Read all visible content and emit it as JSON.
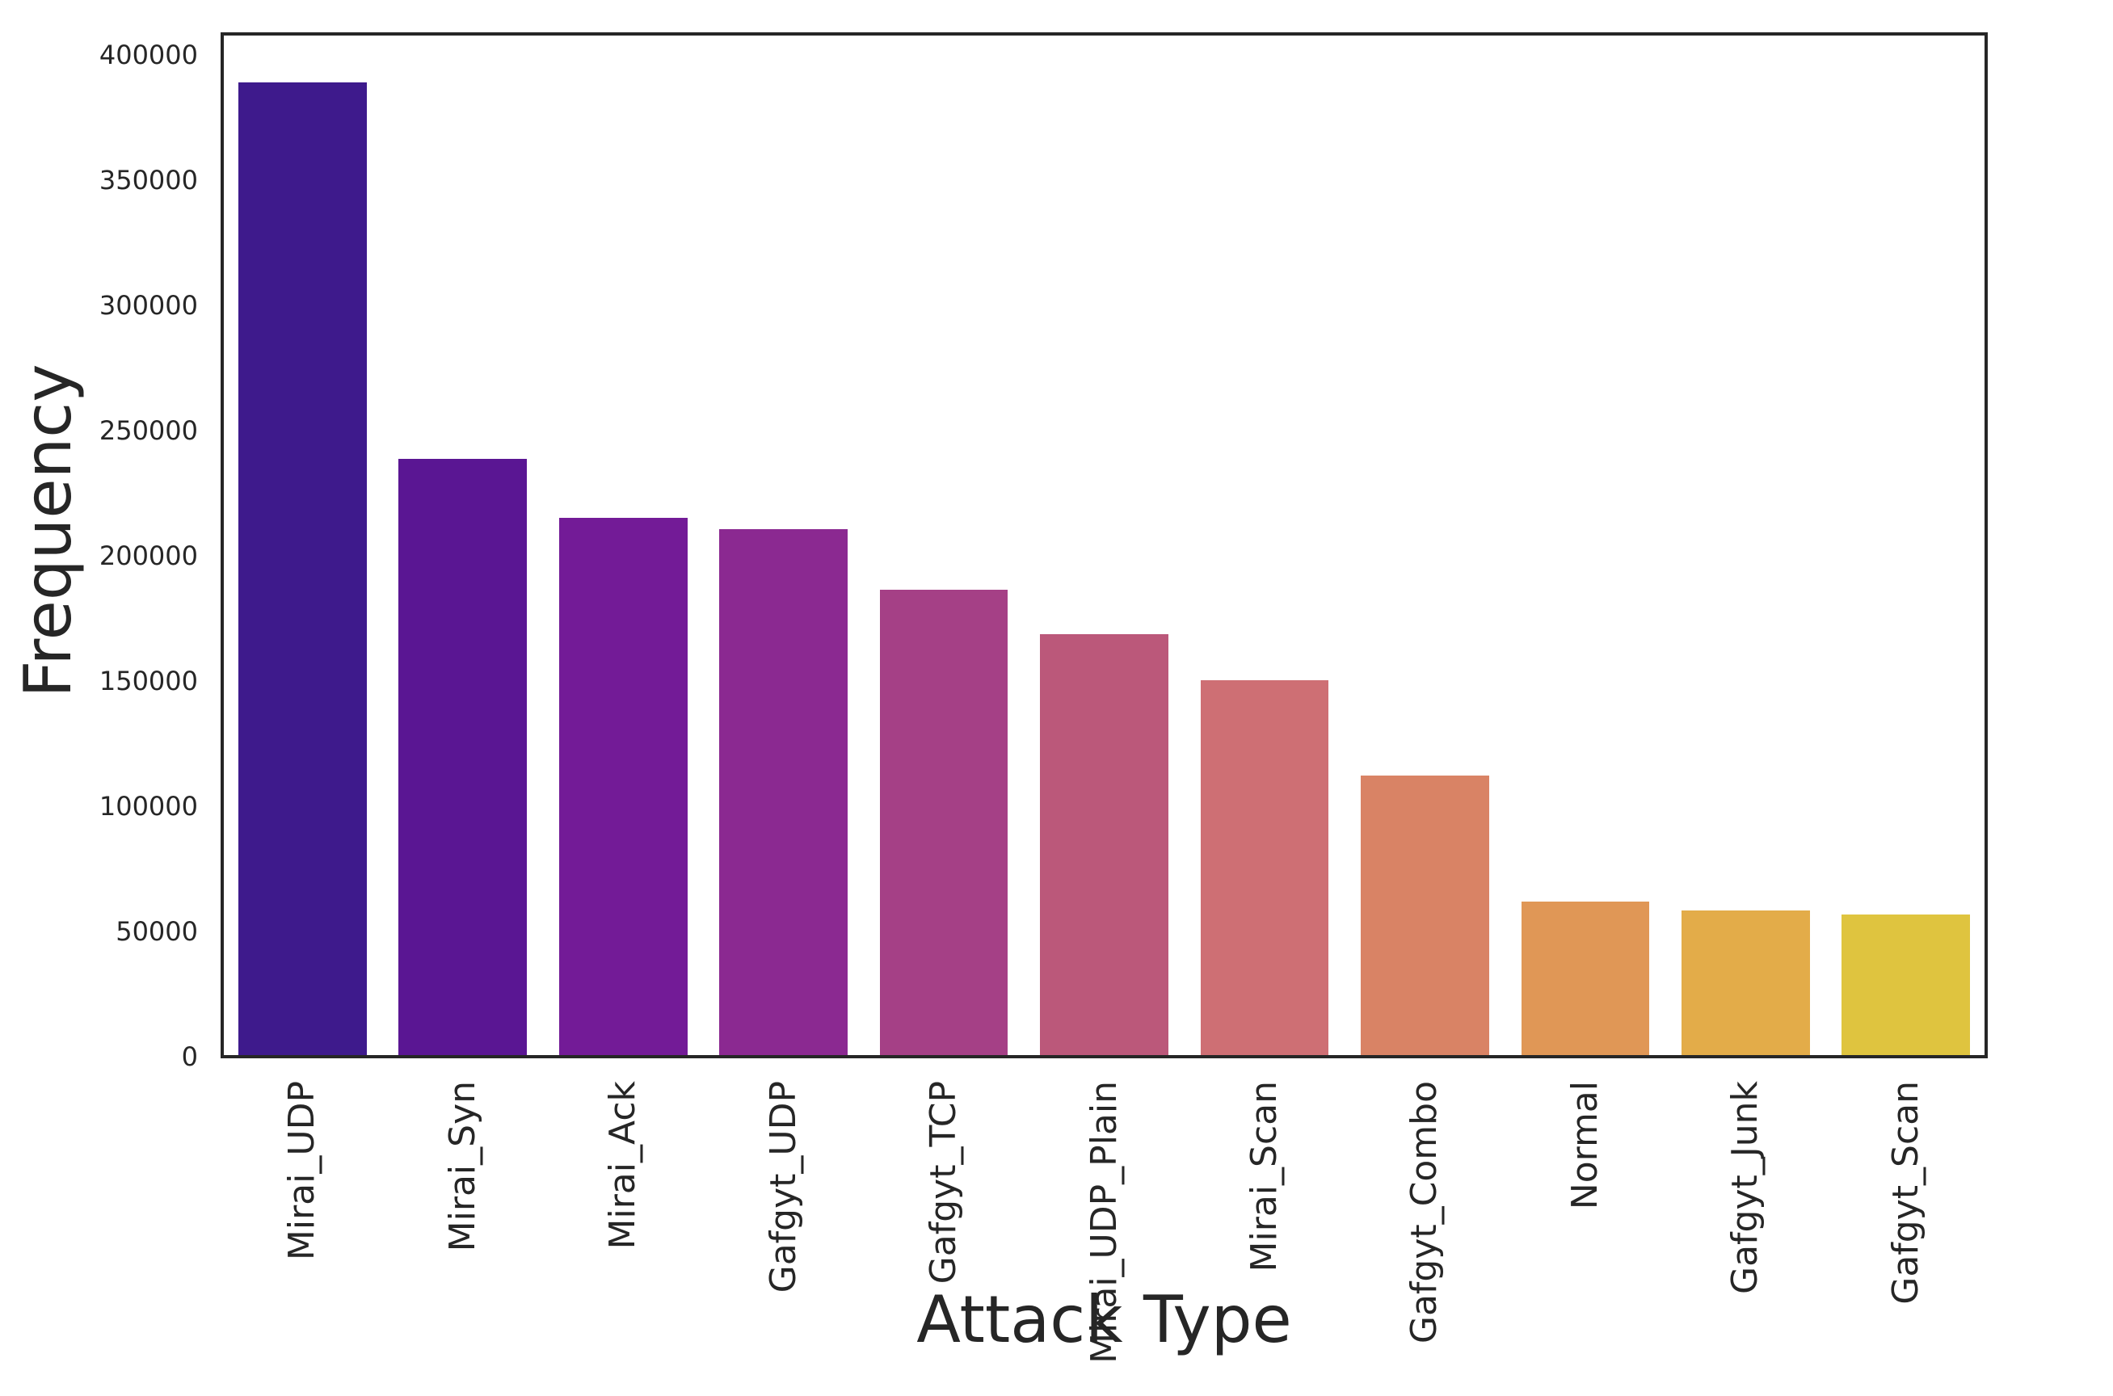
{
  "chart_data": {
    "type": "bar",
    "title": "",
    "xlabel": "Attack Type",
    "ylabel": "Frequency",
    "categories": [
      "Mirai_UDP",
      "Mirai_Syn",
      "Mirai_Ack",
      "Gafgyt_UDP",
      "Gafgyt_TCP",
      "Mirai_UDP_Plain",
      "Mirai_Scan",
      "Gafgyt_Combo",
      "Normal",
      "Gafgyt_Junk",
      "Gafgyt_Scan"
    ],
    "values": [
      389000,
      238700,
      215200,
      210600,
      186500,
      168700,
      150300,
      112300,
      61900,
      58400,
      56800
    ],
    "bar_colors": [
      "#3e1a8c",
      "#5a1693",
      "#731b97",
      "#8b2991",
      "#a54086",
      "#bb587a",
      "#ce6f74",
      "#d98365",
      "#e09756",
      "#e3ac49",
      "#dfc43f"
    ],
    "yticks": [
      0,
      50000,
      100000,
      150000,
      200000,
      250000,
      300000,
      350000,
      400000
    ],
    "ytick_labels": [
      "0",
      "50000",
      "100000",
      "150000",
      "200000",
      "250000",
      "300000",
      "350000",
      "400000"
    ],
    "ylim": [
      0,
      408387
    ],
    "grid": false,
    "legend": null,
    "orientation": "vertical"
  },
  "style": {
    "background": "#ffffff",
    "spine_color": "#262626",
    "text_color": "#262626"
  }
}
